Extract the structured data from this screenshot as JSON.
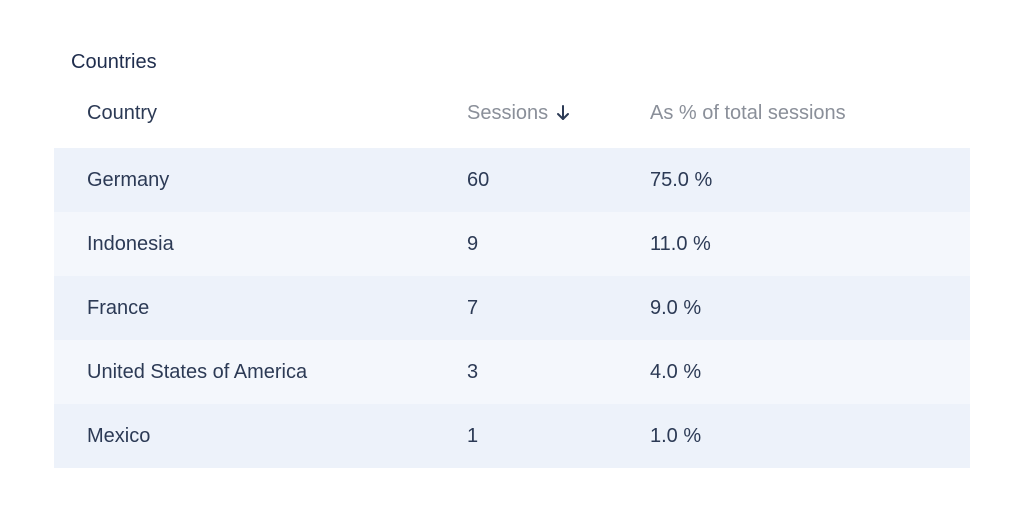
{
  "title": "Countries",
  "columns": {
    "country": "Country",
    "sessions": "Sessions",
    "percent": "As % of total sessions"
  },
  "sort": {
    "column": "sessions",
    "direction": "descending",
    "icon": "arrow-down-icon"
  },
  "colors": {
    "row_odd": "#edf2fa",
    "row_even": "#f4f7fc",
    "header_muted": "#8a8f99",
    "text": "#2c3a55"
  },
  "rows": [
    {
      "country": "Germany",
      "sessions": "60",
      "percent": "75.0 %"
    },
    {
      "country": "Indonesia",
      "sessions": "9",
      "percent": "11.0 %"
    },
    {
      "country": "France",
      "sessions": "7",
      "percent": "9.0 %"
    },
    {
      "country": "United States of America",
      "sessions": "3",
      "percent": "4.0 %"
    },
    {
      "country": "Mexico",
      "sessions": "1",
      "percent": "1.0 %"
    }
  ]
}
